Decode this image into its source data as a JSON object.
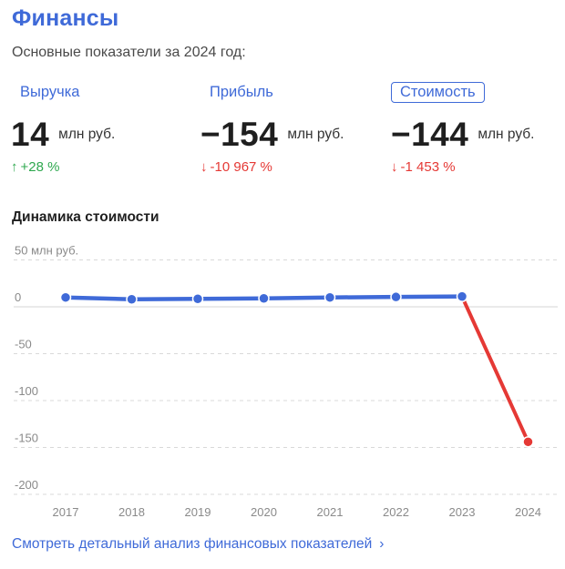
{
  "header": {
    "title": "Финансы",
    "subtitle": "Основные показатели за 2024 год:"
  },
  "metrics": [
    {
      "label": "Выручка",
      "value": "14",
      "unit": "млн руб.",
      "change_arrow": "↑",
      "change": "+28 %",
      "direction": "up",
      "active": false
    },
    {
      "label": "Прибыль",
      "value": "−154",
      "unit": "млн руб.",
      "change_arrow": "↓",
      "change": "-10 967 %",
      "direction": "down",
      "active": false
    },
    {
      "label": "Стоимость",
      "value": "−144",
      "unit": "млн руб.",
      "change_arrow": "↓",
      "change": "-1 453 %",
      "direction": "down",
      "active": true
    }
  ],
  "chart_section": {
    "title": "Динамика стоимости"
  },
  "chart_data": {
    "type": "line",
    "x": [
      "2017",
      "2018",
      "2019",
      "2020",
      "2021",
      "2022",
      "2023",
      "2024"
    ],
    "series": [
      {
        "values": [
          10,
          8,
          8.5,
          9,
          10,
          10.5,
          11,
          -144
        ]
      }
    ],
    "y_ticks": [
      {
        "value": 50,
        "label": "50 млн руб."
      },
      {
        "value": 0,
        "label": "0"
      },
      {
        "value": -50,
        "label": "-50"
      },
      {
        "value": -100,
        "label": "-100"
      },
      {
        "value": -150,
        "label": "-150"
      },
      {
        "value": -200,
        "label": "-200"
      }
    ],
    "ylim": [
      -200,
      50
    ],
    "grid": true,
    "colors": {
      "positive": "#3f6ad8",
      "negative": "#e53935"
    }
  },
  "footer": {
    "link_text": "Смотреть детальный анализ финансовых показателей",
    "chevron": "›"
  },
  "colors": {
    "accent": "#3f6ad8",
    "up": "#2fa84f",
    "down": "#e53935"
  }
}
